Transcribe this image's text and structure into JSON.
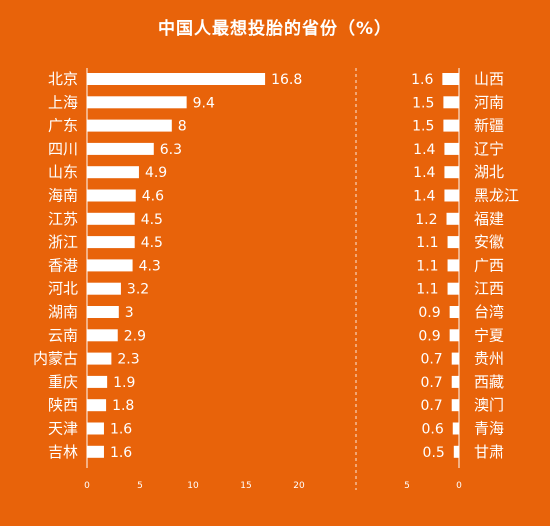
{
  "chart_data": [
    {
      "type": "bar",
      "orientation": "horizontal",
      "title": "中国人最想投胎的省份（%）",
      "categories": [
        "北京",
        "上海",
        "广东",
        "四川",
        "山东",
        "海南",
        "江苏",
        "浙江",
        "香港",
        "河北",
        "湖南",
        "云南",
        "内蒙古",
        "重庆",
        "陕西",
        "天津",
        "吉林"
      ],
      "values": [
        16.8,
        9.4,
        8,
        6.3,
        4.9,
        4.6,
        4.5,
        4.5,
        4.3,
        3.2,
        3,
        2.9,
        2.3,
        1.9,
        1.8,
        1.6,
        1.6
      ],
      "value_labels": [
        "16.8",
        "9.4",
        "8",
        "6.3",
        "4.9",
        "4.6",
        "4.5",
        "4.5",
        "4.3",
        "3.2",
        "3",
        "2.9",
        "2.3",
        "1.9",
        "1.8",
        "1.6",
        "1.6"
      ],
      "xticks": [
        "0",
        "5",
        "10",
        "15",
        "20"
      ],
      "xlim": [
        0,
        20
      ],
      "bar_color": "#ffffff",
      "background": "#e8630a"
    },
    {
      "type": "bar",
      "orientation": "horizontal",
      "direction": "right-to-left",
      "categories": [
        "山西",
        "河南",
        "新疆",
        "辽宁",
        "湖北",
        "黑龙江",
        "福建",
        "安徽",
        "广西",
        "江西",
        "台湾",
        "宁夏",
        "贵州",
        "西藏",
        "澳门",
        "青海",
        "甘肃"
      ],
      "values": [
        1.6,
        1.5,
        1.5,
        1.4,
        1.4,
        1.4,
        1.2,
        1.1,
        1.1,
        1.1,
        0.9,
        0.9,
        0.7,
        0.7,
        0.7,
        0.6,
        0.5
      ],
      "value_labels": [
        "1.6",
        "1.5",
        "1.5",
        "1.4",
        "1.4",
        "1.4",
        "1.2",
        "1.1",
        "1.1",
        "1.1",
        "0.9",
        "0.9",
        "0.7",
        "0.7",
        "0.7",
        "0.6",
        "0.5"
      ],
      "xticks": [
        "5",
        "0"
      ],
      "bar_color": "#ffffff"
    }
  ]
}
